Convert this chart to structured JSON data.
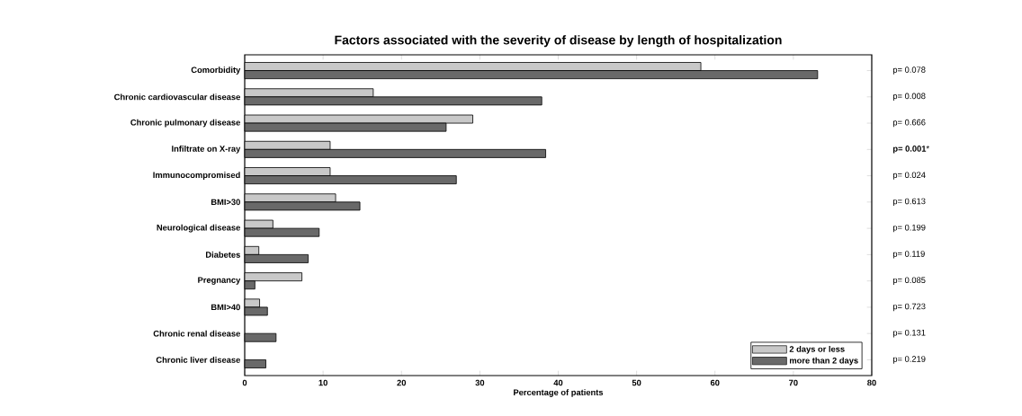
{
  "chart_data": {
    "type": "bar",
    "orientation": "horizontal",
    "title": "Factors associated with the severity of disease by length of hospitalization",
    "xlabel": "Percentage of patients",
    "categories": [
      "Comorbidity",
      "Chronic cardiovascular disease",
      "Chronic pulmonary disease",
      "Infiltrate on X-ray",
      "Immunocompromised",
      "BMI>30",
      "Neurological disease",
      "Diabetes",
      "Pregnancy",
      "BMI>40",
      "Chronic renal disease",
      "Chronic liver disease"
    ],
    "series": [
      {
        "name": "2 days or less",
        "color": "#c8c8c8",
        "values": [
          58.2,
          16.4,
          29.1,
          10.9,
          10.9,
          11.6,
          3.6,
          1.8,
          7.3,
          1.9,
          null,
          null
        ]
      },
      {
        "name": "more than 2 days",
        "color": "#696969",
        "values": [
          73.1,
          37.9,
          25.7,
          38.4,
          27.0,
          14.7,
          9.5,
          8.1,
          1.3,
          2.9,
          4.0,
          2.7
        ]
      }
    ],
    "xlim": [
      0,
      80
    ],
    "xticks": [
      0,
      10,
      20,
      30,
      40,
      50,
      60,
      70,
      80
    ],
    "grid": false,
    "legend": "bottom right",
    "annotations": [
      "p= 0.078",
      "p= 0.008",
      "p= 0.666",
      "**p= 0.001***",
      "p= 0.024",
      "p= 0.613",
      "p= 0.199",
      "p= 0.119",
      "p= 0.085",
      "p= 0.723",
      "p= 0.131",
      "p= 0.219"
    ]
  }
}
